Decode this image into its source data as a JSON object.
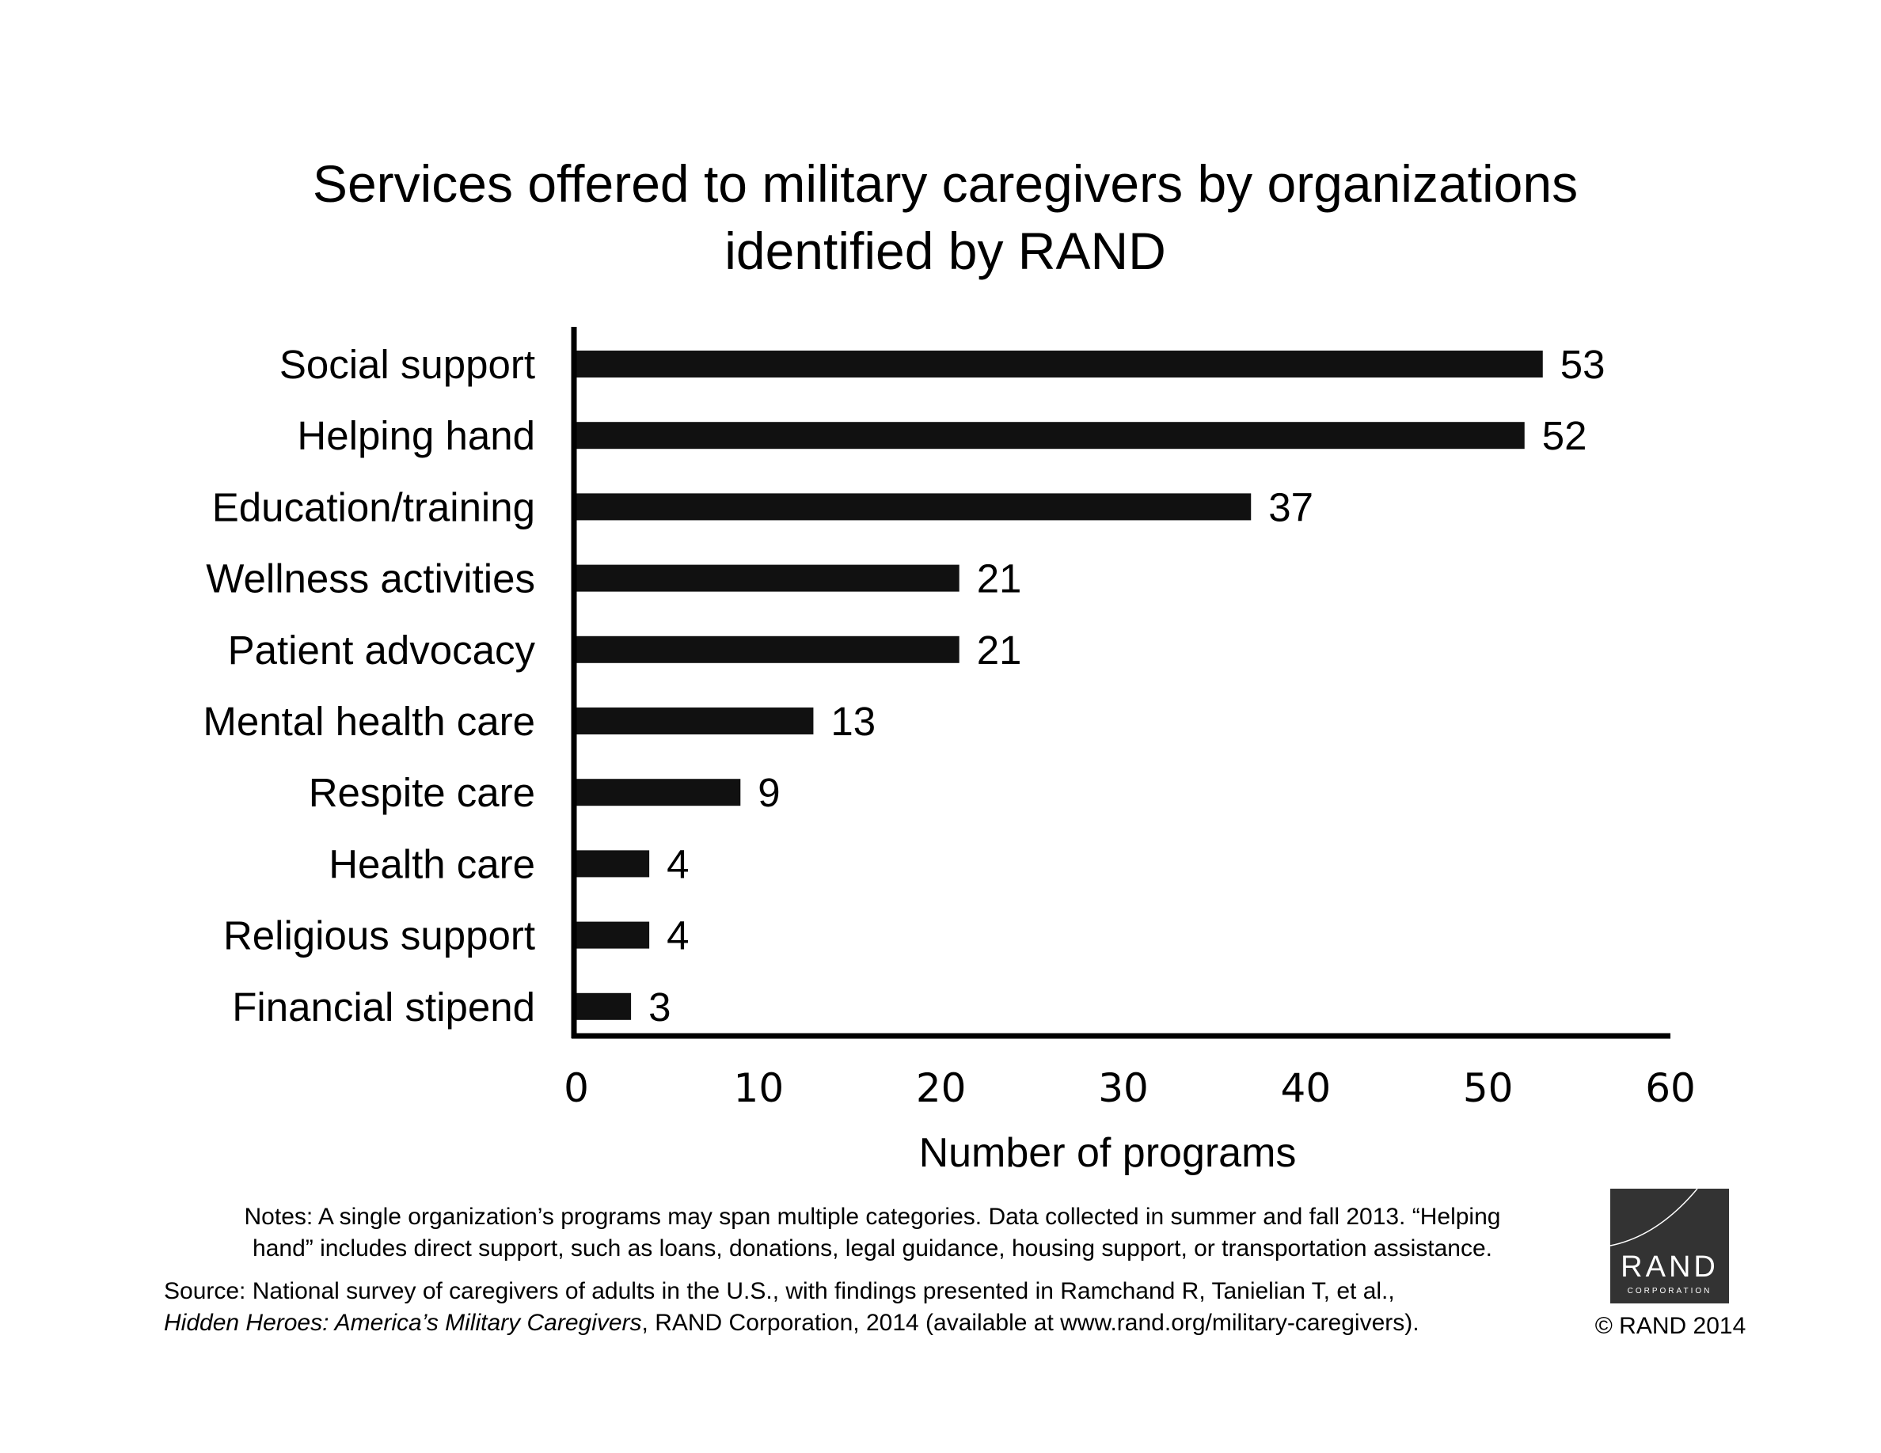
{
  "chart_data": {
    "type": "bar",
    "orientation": "horizontal",
    "title": "Services offered to military caregivers by organizations identified by RAND",
    "title_lines": [
      "Services offered to military caregivers by organizations",
      "identified by RAND"
    ],
    "categories": [
      "Social support",
      "Helping hand",
      "Education/training",
      "Wellness activities",
      "Patient advocacy",
      "Mental health care",
      "Respite care",
      "Health care",
      "Religious support",
      "Financial stipend"
    ],
    "values": [
      53,
      52,
      37,
      21,
      21,
      13,
      9,
      4,
      4,
      3
    ],
    "data_labels": [
      "53",
      "52",
      "37",
      "21",
      "21",
      "13",
      "9",
      "4",
      "4",
      "3"
    ],
    "xlabel": "Number of programs",
    "ylabel": "",
    "xlim": [
      0,
      60
    ],
    "xticks": [
      0,
      10,
      20,
      30,
      40,
      50,
      60
    ],
    "xtick_labels": [
      "0",
      "10",
      "20",
      "30",
      "40",
      "50",
      "60"
    ],
    "grid": false,
    "bar_color": "#111111"
  },
  "notes": {
    "line1": "Notes: A single organization’s programs may span multiple categories. Data collected in summer and fall 2013. “Helping",
    "line2": "hand” includes direct support, such as loans, donations, legal guidance, housing support, or transportation assistance."
  },
  "source": {
    "line1": "Source: National survey of caregivers of adults in the U.S., with findings presented in Ramchand R, Tanielian T, et al.,",
    "line2_italic": "Hidden Heroes: America’s Military Caregivers",
    "line2_rest": ", RAND Corporation, 2014 (available at www.rand.org/military-caregivers)."
  },
  "logo": {
    "name": "RAND",
    "subtitle": "CORPORATION",
    "background_color": "#333333"
  },
  "copyright": "© RAND 2014"
}
